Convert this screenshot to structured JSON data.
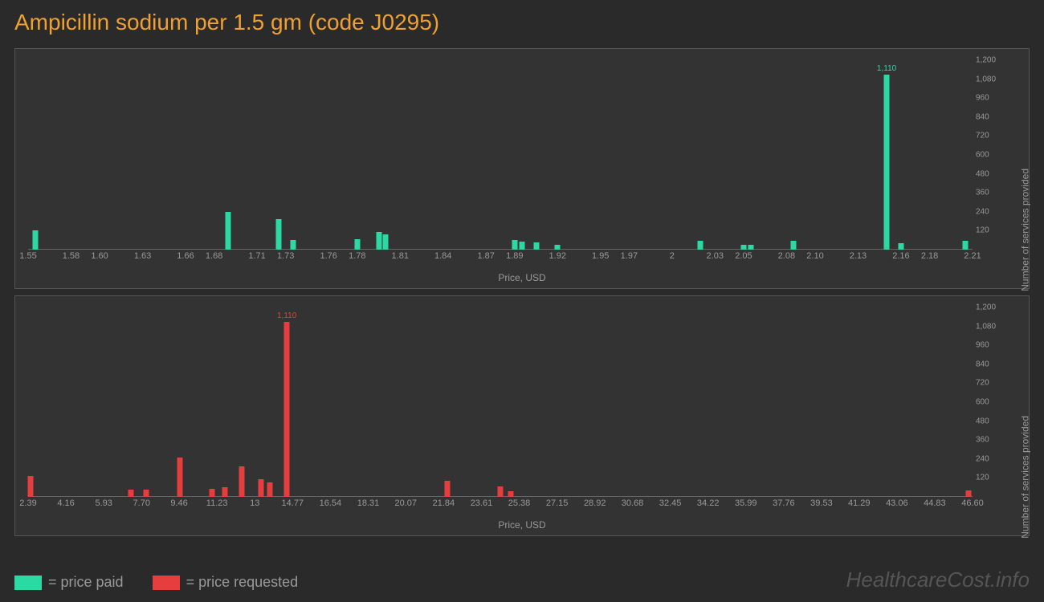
{
  "title": "Ampicillin sodium per 1.5 gm (code J0295)",
  "colors": {
    "background": "#2a2a2a",
    "panel": "#333333",
    "panel_border": "#555555",
    "axis_text": "#999999",
    "title": "#f0a030",
    "paid": "#2dd9a3",
    "requested": "#e53e3e",
    "watermark": "#555555"
  },
  "chart1": {
    "type": "bar",
    "series_color": "#2dd9a3",
    "x_label": "Price, USD",
    "y_label": "Number of services provided",
    "x_min": 1.55,
    "x_max": 2.21,
    "y_min": 0,
    "y_max": 1200,
    "x_ticks": [
      "1.55",
      "1.58",
      "1.60",
      "1.63",
      "1.66",
      "1.68",
      "1.71",
      "1.73",
      "1.76",
      "1.78",
      "1.81",
      "1.84",
      "1.87",
      "1.89",
      "1.92",
      "1.95",
      "1.97",
      "2",
      "2.03",
      "2.05",
      "2.08",
      "2.10",
      "2.13",
      "2.16",
      "2.18",
      "2.21"
    ],
    "y_ticks": [
      "120",
      "240",
      "360",
      "480",
      "600",
      "720",
      "840",
      "960",
      "1,080",
      "1,200"
    ],
    "bars": [
      {
        "x": 1.555,
        "y": 120
      },
      {
        "x": 1.69,
        "y": 240
      },
      {
        "x": 1.725,
        "y": 195
      },
      {
        "x": 1.735,
        "y": 60
      },
      {
        "x": 1.78,
        "y": 65
      },
      {
        "x": 1.795,
        "y": 110
      },
      {
        "x": 1.8,
        "y": 95
      },
      {
        "x": 1.89,
        "y": 60
      },
      {
        "x": 1.895,
        "y": 50
      },
      {
        "x": 1.905,
        "y": 45
      },
      {
        "x": 1.92,
        "y": 30
      },
      {
        "x": 2.02,
        "y": 55
      },
      {
        "x": 2.05,
        "y": 30
      },
      {
        "x": 2.055,
        "y": 30
      },
      {
        "x": 2.085,
        "y": 55
      },
      {
        "x": 2.15,
        "y": 1110,
        "label": "1,110"
      },
      {
        "x": 2.16,
        "y": 40
      },
      {
        "x": 2.205,
        "y": 55
      }
    ]
  },
  "chart2": {
    "type": "bar",
    "series_color": "#e53e3e",
    "x_label": "Price, USD",
    "y_label": "Number of services provided",
    "x_min": 2.39,
    "x_max": 46.6,
    "y_min": 0,
    "y_max": 1200,
    "x_ticks": [
      "2.39",
      "4.16",
      "5.93",
      "7.70",
      "9.46",
      "11.23",
      "13",
      "14.77",
      "16.54",
      "18.31",
      "20.07",
      "21.84",
      "23.61",
      "25.38",
      "27.15",
      "28.92",
      "30.68",
      "32.45",
      "34.22",
      "35.99",
      "37.76",
      "39.53",
      "41.29",
      "43.06",
      "44.83",
      "46.60"
    ],
    "y_ticks": [
      "120",
      "240",
      "360",
      "480",
      "600",
      "720",
      "840",
      "960",
      "1,080",
      "1,200"
    ],
    "bars": [
      {
        "x": 2.5,
        "y": 130
      },
      {
        "x": 7.2,
        "y": 45
      },
      {
        "x": 7.9,
        "y": 45
      },
      {
        "x": 9.5,
        "y": 250
      },
      {
        "x": 11.0,
        "y": 50
      },
      {
        "x": 11.6,
        "y": 60
      },
      {
        "x": 12.4,
        "y": 195
      },
      {
        "x": 13.3,
        "y": 110
      },
      {
        "x": 13.7,
        "y": 90
      },
      {
        "x": 14.5,
        "y": 1110,
        "label": "1,110"
      },
      {
        "x": 22.0,
        "y": 100
      },
      {
        "x": 24.5,
        "y": 65
      },
      {
        "x": 25.0,
        "y": 35
      },
      {
        "x": 46.4,
        "y": 40
      }
    ]
  },
  "legend": {
    "paid": "= price paid",
    "requested": "= price requested"
  },
  "watermark": "HealthcareCost.info",
  "axis_fontsize": 11,
  "tick_fontsize": 10,
  "title_fontsize": 28
}
